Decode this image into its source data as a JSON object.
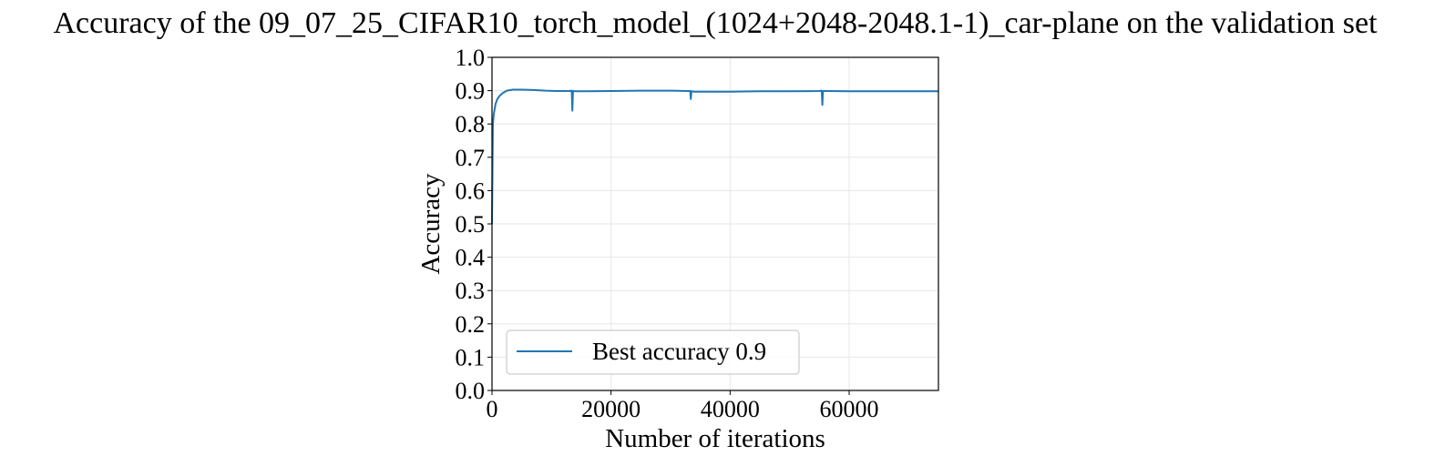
{
  "chart_data": {
    "type": "line",
    "title": "Accuracy of the 09_07_25_CIFAR10_torch_model_(1024+2048-2048.1-1)_car-plane on the validation set",
    "xlabel": "Number of iterations",
    "ylabel": "Accuracy",
    "xlim": [
      0,
      75000
    ],
    "ylim": [
      0.0,
      1.0
    ],
    "xticks": [
      0,
      20000,
      40000,
      60000
    ],
    "xtick_labels": [
      "0",
      "20000",
      "40000",
      "60000"
    ],
    "yticks": [
      0.0,
      0.1,
      0.2,
      0.3,
      0.4,
      0.5,
      0.6,
      0.7,
      0.8,
      0.9,
      1.0
    ],
    "ytick_labels": [
      "0.0",
      "0.1",
      "0.2",
      "0.3",
      "0.4",
      "0.5",
      "0.6",
      "0.7",
      "0.8",
      "0.9",
      "1.0"
    ],
    "grid": true,
    "legend_position": "lower-left",
    "series": [
      {
        "name": "Best accuracy 0.9",
        "color": "#1f77b4",
        "x": [
          0,
          150,
          300,
          600,
          900,
          1300,
          1800,
          2500,
          3500,
          5000,
          7000,
          9000,
          11000,
          13000,
          13400,
          13500,
          13600,
          14000,
          16000,
          20000,
          25000,
          30000,
          33000,
          33300,
          33400,
          33500,
          34000,
          40000,
          45000,
          50000,
          55000,
          55400,
          55500,
          55600,
          56000,
          60000,
          65000,
          70000,
          75000
        ],
        "y": [
          0.5,
          0.8,
          0.83,
          0.86,
          0.875,
          0.885,
          0.893,
          0.9,
          0.903,
          0.903,
          0.902,
          0.9,
          0.899,
          0.899,
          0.9,
          0.84,
          0.899,
          0.898,
          0.898,
          0.899,
          0.9,
          0.9,
          0.899,
          0.899,
          0.875,
          0.898,
          0.897,
          0.897,
          0.898,
          0.898,
          0.899,
          0.9,
          0.857,
          0.899,
          0.899,
          0.898,
          0.898,
          0.898,
          0.898
        ]
      }
    ]
  }
}
